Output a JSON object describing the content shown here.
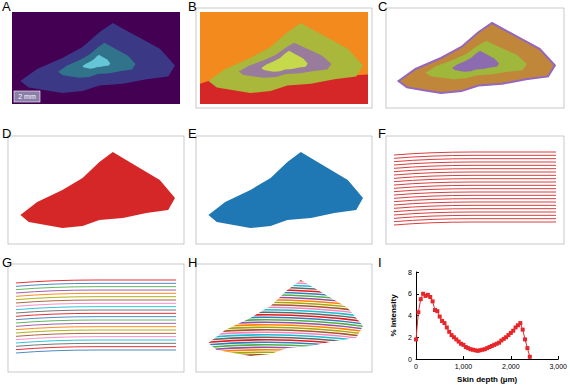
{
  "panels": [
    {
      "label": "A",
      "scale_bar": "2 mm"
    },
    {
      "label": "B"
    },
    {
      "label": "C"
    },
    {
      "label": "D"
    },
    {
      "label": "E"
    },
    {
      "label": "F"
    },
    {
      "label": "G"
    },
    {
      "label": "H"
    },
    {
      "label": "I"
    }
  ],
  "chart_data": {
    "type": "line",
    "x_label": "Skin depth (µm)",
    "y_label": "% Intensity",
    "x": [
      0,
      50,
      100,
      150,
      200,
      250,
      300,
      350,
      400,
      450,
      500,
      550,
      600,
      650,
      700,
      750,
      800,
      850,
      900,
      950,
      1000,
      1050,
      1100,
      1150,
      1200,
      1250,
      1300,
      1350,
      1400,
      1450,
      1500,
      1550,
      1600,
      1650,
      1700,
      1750,
      1800,
      1850,
      1900,
      1950,
      2000,
      2050,
      2100,
      2150,
      2200,
      2250,
      2300,
      2350,
      2400
    ],
    "values": [
      1.8,
      4.3,
      5.5,
      6.0,
      5.8,
      5.9,
      5.7,
      5.3,
      4.5,
      4.4,
      3.9,
      3.5,
      3.3,
      2.9,
      2.5,
      2.2,
      2.0,
      1.8,
      1.6,
      1.4,
      1.3,
      1.1,
      1.0,
      0.9,
      0.85,
      0.8,
      0.75,
      0.8,
      0.85,
      0.9,
      1.0,
      1.1,
      1.2,
      1.3,
      1.4,
      1.5,
      1.7,
      1.85,
      2.0,
      2.2,
      2.4,
      2.6,
      2.9,
      3.1,
      3.3,
      2.7,
      1.8,
      1.0,
      0.2
    ],
    "color": "#e8262a",
    "marker": "square",
    "xlim": [
      0,
      3000
    ],
    "xticks": [
      0,
      1000,
      2000,
      3000
    ],
    "ylim": [
      0,
      8
    ],
    "yticks": [
      0,
      2,
      4,
      6,
      8
    ],
    "grid": false
  }
}
